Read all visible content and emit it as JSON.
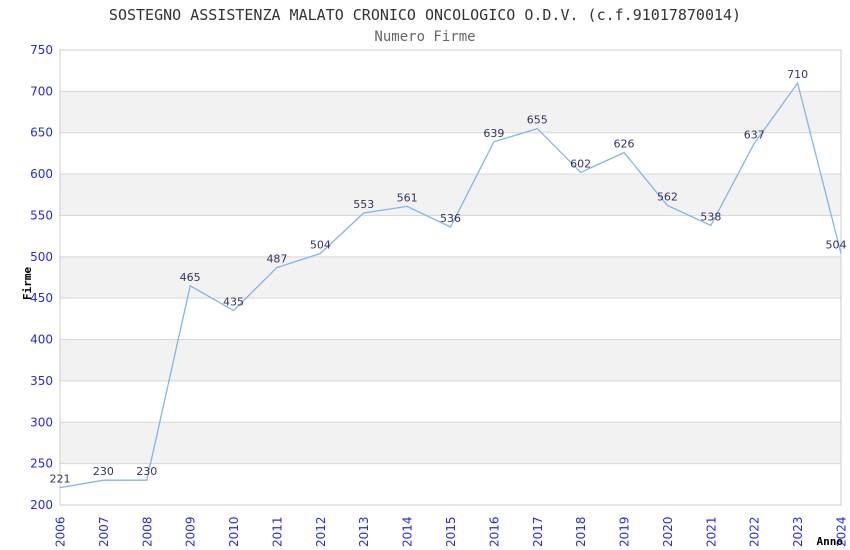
{
  "chart_data": {
    "type": "line",
    "title": "SOSTEGNO ASSISTENZA MALATO CRONICO ONCOLOGICO O.D.V. (c.f.91017870014)",
    "subtitle": "Numero Firme",
    "xlabel": "Anno",
    "ylabel": "Firme",
    "categories": [
      "2006",
      "2007",
      "2008",
      "2009",
      "2010",
      "2011",
      "2012",
      "2013",
      "2014",
      "2015",
      "2016",
      "2017",
      "2018",
      "2019",
      "2020",
      "2021",
      "2022",
      "2023",
      "2024"
    ],
    "values": [
      221,
      230,
      230,
      465,
      435,
      487,
      504,
      553,
      561,
      536,
      639,
      655,
      602,
      626,
      562,
      538,
      637,
      710,
      504
    ],
    "ylim": [
      200,
      750
    ],
    "ytick_step": 50,
    "yticks": [
      200,
      250,
      300,
      350,
      400,
      450,
      500,
      550,
      600,
      650,
      700,
      750
    ],
    "grid": "horizontal-bands",
    "legend": "none",
    "colors": {
      "line": "#85b4e8",
      "tick_label": "#2828e8",
      "value_label": "#333366",
      "title": "#333333",
      "subtitle": "#666666",
      "band": "#f2f2f2",
      "gridline": "#d8d8d8",
      "plot_border": "#cccccc",
      "axis_title": "#000000",
      "background": "#ffffff"
    }
  }
}
